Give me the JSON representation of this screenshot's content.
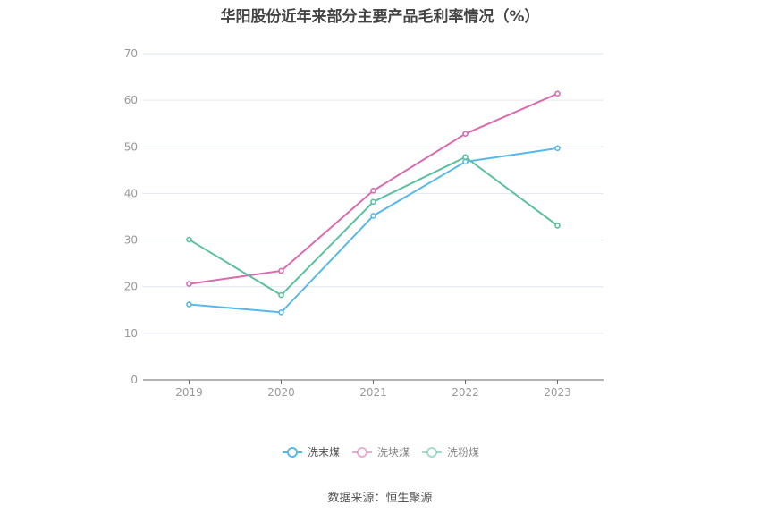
{
  "chart_data": {
    "type": "line",
    "title": "华阳股份近年来部分主要产品毛利率情况（%）",
    "xlabel": "",
    "ylabel": "",
    "categories": [
      "2019",
      "2020",
      "2021",
      "2022",
      "2023"
    ],
    "ylim": [
      0,
      70
    ],
    "yticks": [
      0,
      10,
      20,
      30,
      40,
      50,
      60,
      70
    ],
    "grid": true,
    "legend_position": "bottom",
    "series": [
      {
        "name": "洗末煤",
        "color": "#58b9e8",
        "values": [
          16.2,
          14.5,
          35.2,
          46.8,
          49.7
        ]
      },
      {
        "name": "洗块煤",
        "color": "#d96bae",
        "values": [
          20.6,
          23.4,
          40.6,
          52.8,
          61.4
        ]
      },
      {
        "name": "洗粉煤",
        "color": "#5bbfa0",
        "values": [
          30.1,
          18.2,
          38.2,
          47.8,
          33.1
        ]
      }
    ]
  },
  "source": "数据来源：恒生聚源"
}
